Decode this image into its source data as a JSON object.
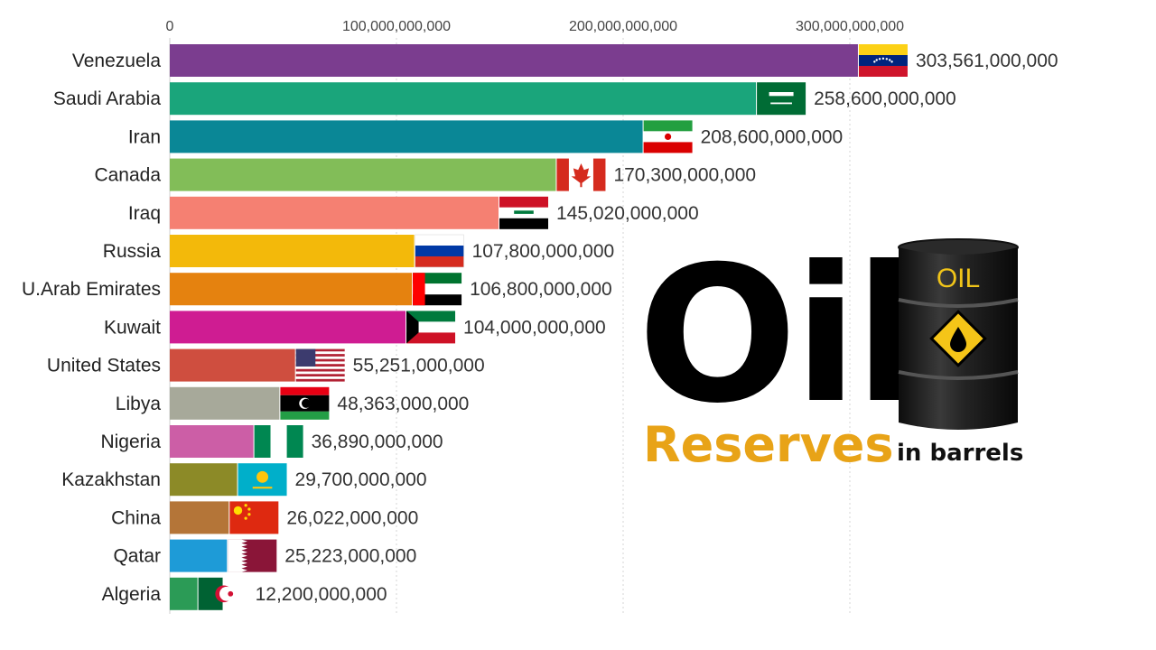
{
  "title": {
    "main": "Oil",
    "sub": "Reserves",
    "unit": "in barrels"
  },
  "barrel": {
    "label": "OIL",
    "icon": "oil-drop-icon",
    "body_color": "#1c1c1c",
    "sign_color": "#f5c518"
  },
  "chart_data": {
    "type": "bar",
    "orientation": "horizontal",
    "title": "",
    "xlabel": "",
    "ylabel": "",
    "xlim": [
      0,
      330000000000
    ],
    "grid": true,
    "x_ticks": [
      0,
      100000000000,
      200000000000,
      300000000000
    ],
    "x_tick_labels": [
      "0",
      "100,000,000,000",
      "200,000,000,000",
      "300,000,000,000"
    ],
    "categories": [
      "Venezuela",
      "Saudi Arabia",
      "Iran",
      "Canada",
      "Iraq",
      "Russia",
      "U.Arab Emirates",
      "Kuwait",
      "United States",
      "Libya",
      "Nigeria",
      "Kazakhstan",
      "China",
      "Qatar",
      "Algeria"
    ],
    "values": [
      303561000000,
      258600000000,
      208600000000,
      170300000000,
      145020000000,
      107800000000,
      106800000000,
      104000000000,
      55251000000,
      48363000000,
      36890000000,
      29700000000,
      26022000000,
      25223000000,
      12200000000
    ],
    "value_labels": [
      "303,561,000,000",
      "258,600,000,000",
      "208,600,000,000",
      "170,300,000,000",
      "145,020,000,000",
      "107,800,000,000",
      "106,800,000,000",
      "104,000,000,000",
      "55,251,000,000",
      "48,363,000,000",
      "36,890,000,000",
      "29,700,000,000",
      "26,022,000,000",
      "25,223,000,000",
      "12,200,000,000"
    ],
    "colors": [
      "#7b3d8f",
      "#1aa57b",
      "#0a8796",
      "#82bd58",
      "#f58072",
      "#f3b90a",
      "#e5820f",
      "#cf1c92",
      "#cf4e3f",
      "#a7a99a",
      "#cc5ea6",
      "#8c8a27",
      "#b47538",
      "#1e9bd7",
      "#2b9b56"
    ],
    "flags": [
      "venezuela-flag-icon",
      "saudi-arabia-flag-icon",
      "iran-flag-icon",
      "canada-flag-icon",
      "iraq-flag-icon",
      "russia-flag-icon",
      "uae-flag-icon",
      "kuwait-flag-icon",
      "united-states-flag-icon",
      "libya-flag-icon",
      "nigeria-flag-icon",
      "kazakhstan-flag-icon",
      "china-flag-icon",
      "qatar-flag-icon",
      "algeria-flag-icon"
    ]
  }
}
